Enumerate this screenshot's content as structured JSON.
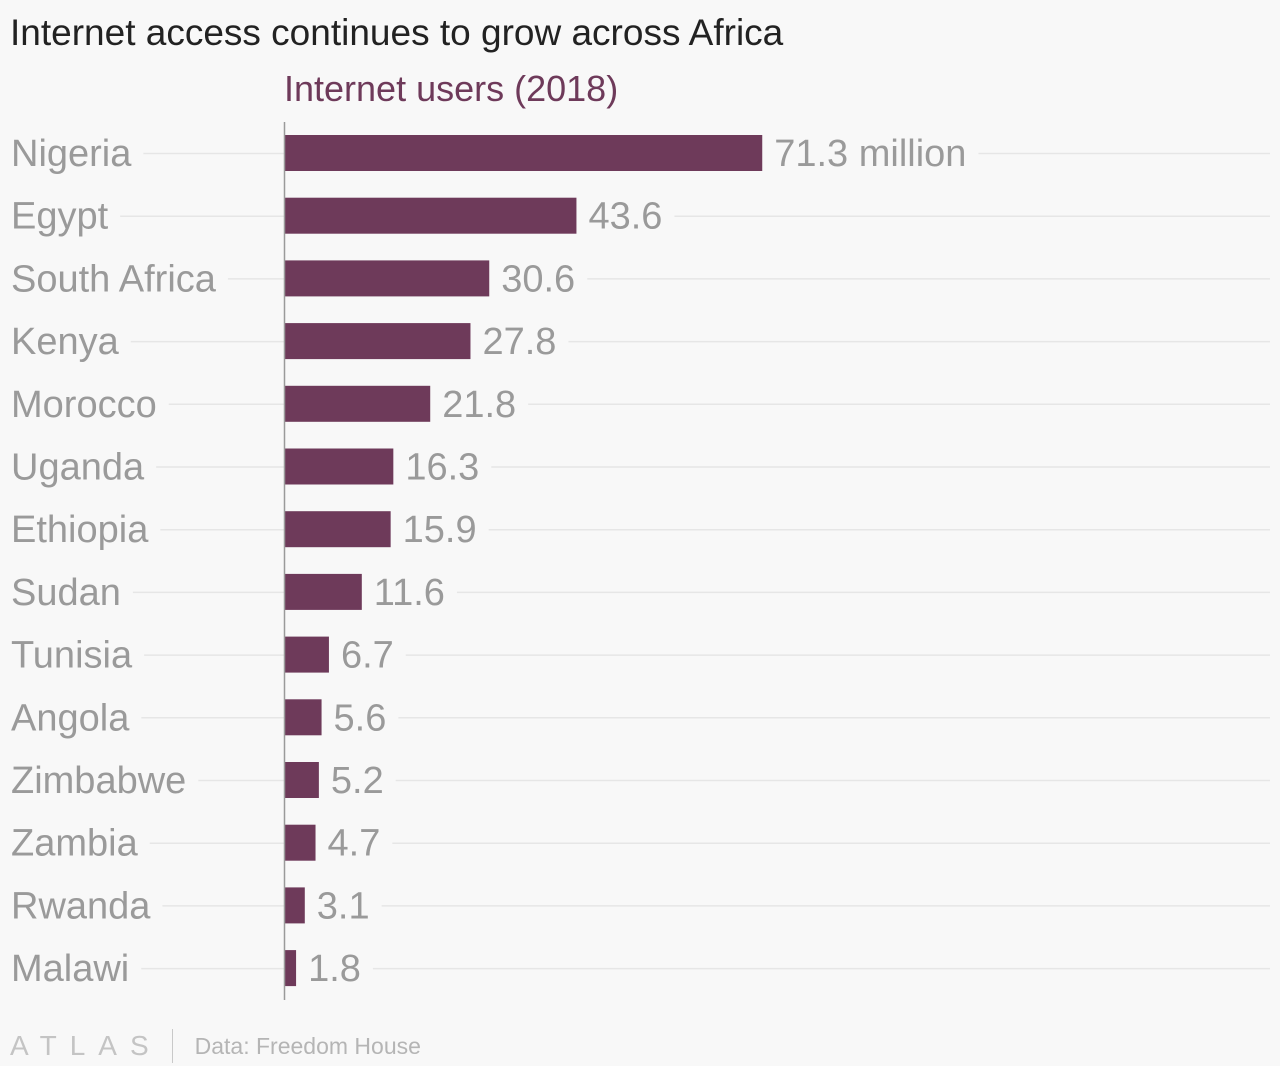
{
  "title": "Internet access continues to grow across Africa",
  "footer": {
    "logo": "ATLAS",
    "source": "Data: Freedom House"
  },
  "colors": {
    "bar": "#6e3a5a",
    "series_title": "#6e3a5a",
    "label": "#9a9a9a",
    "grid": "#e6e6e6",
    "axis": "#9a9a9a"
  },
  "chart_data": {
    "type": "bar",
    "orientation": "horizontal",
    "series_title": "Internet users (2018)",
    "categories": [
      "Nigeria",
      "Egypt",
      "South Africa",
      "Kenya",
      "Morocco",
      "Uganda",
      "Ethiopia",
      "Sudan",
      "Tunisia",
      "Angola",
      "Zimbabwe",
      "Zambia",
      "Rwanda",
      "Malawi"
    ],
    "values": [
      71.3,
      43.6,
      30.6,
      27.8,
      21.8,
      16.3,
      15.9,
      11.6,
      6.7,
      5.6,
      5.2,
      4.7,
      3.1,
      1.8
    ],
    "value_labels": [
      "71.3 million",
      "43.6",
      "30.6",
      "27.8",
      "21.8",
      "16.3",
      "15.9",
      "11.6",
      "6.7",
      "5.6",
      "5.2",
      "4.7",
      "3.1",
      "1.8"
    ],
    "xlim": [
      0,
      147
    ],
    "grid": true
  }
}
